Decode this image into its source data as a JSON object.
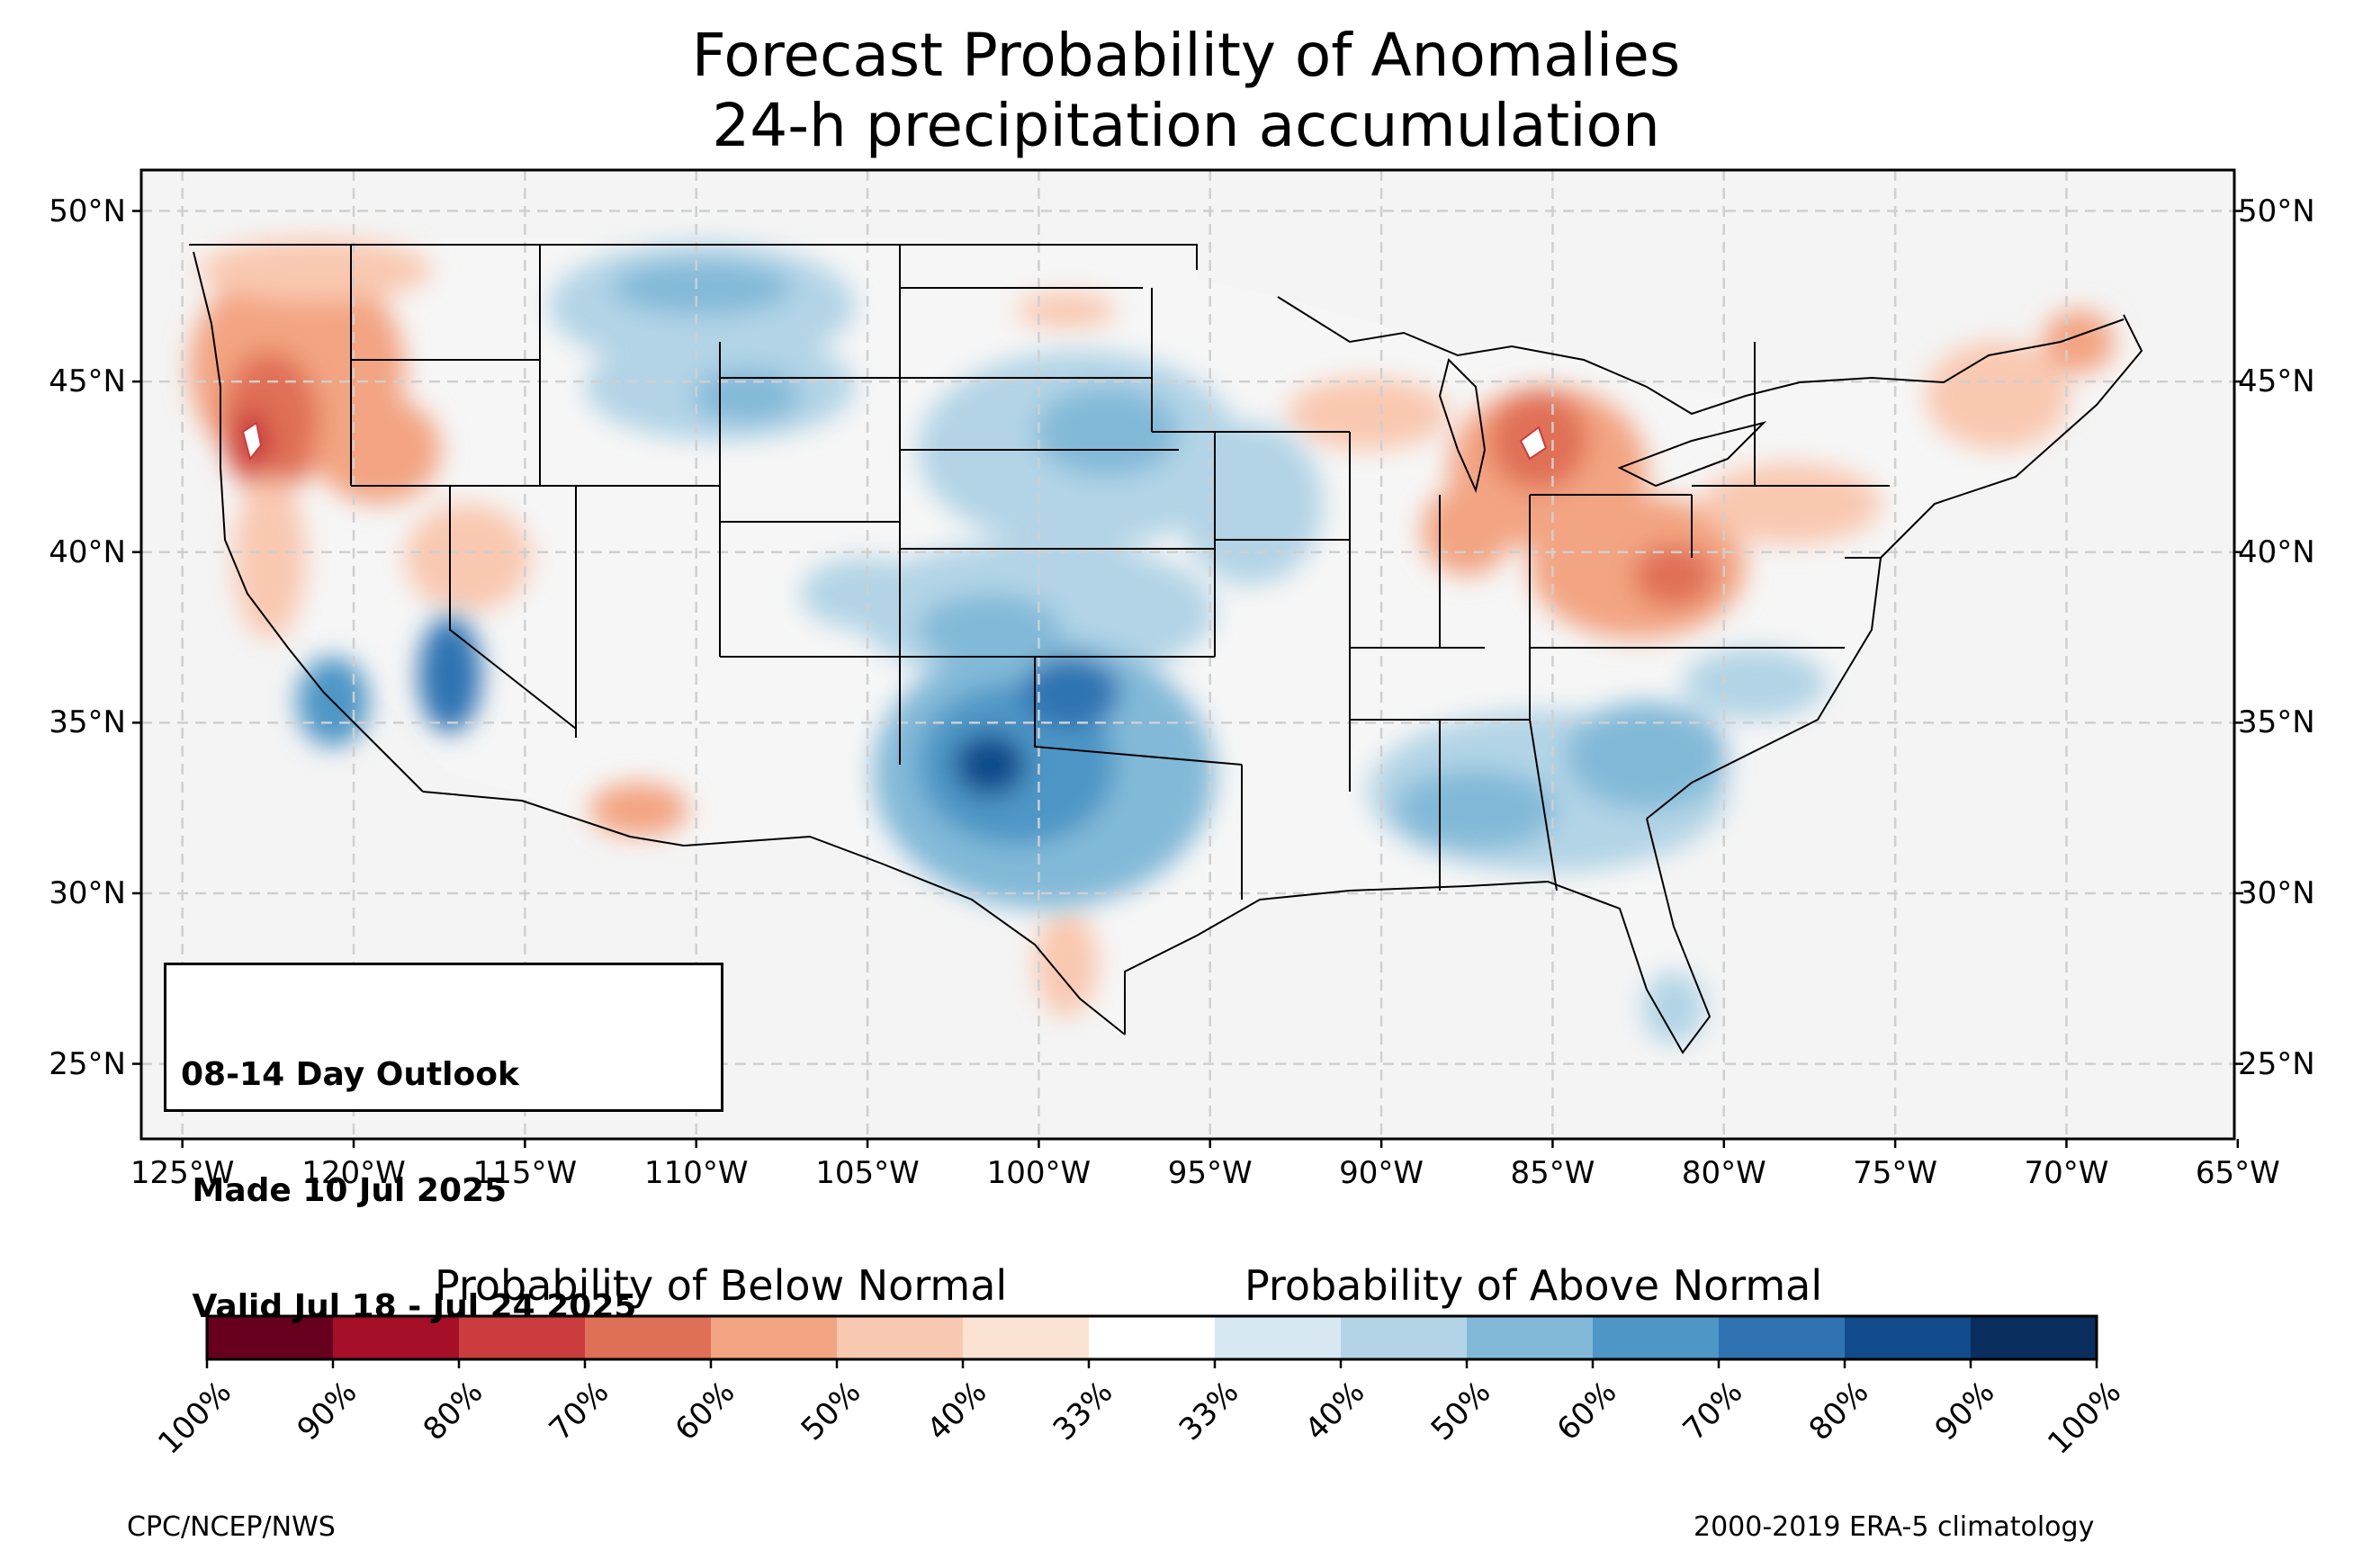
{
  "title": {
    "line1": "Forecast Probability of Anomalies",
    "line2": "24-h precipitation accumulation"
  },
  "map": {
    "lon_ticks": [
      "125°W",
      "120°W",
      "115°W",
      "110°W",
      "105°W",
      "100°W",
      "95°W",
      "90°W",
      "85°W",
      "80°W",
      "75°W",
      "70°W",
      "65°W"
    ],
    "lon_values": [
      -125,
      -120,
      -115,
      -110,
      -105,
      -100,
      -95,
      -90,
      -85,
      -80,
      -75,
      -70,
      -65
    ],
    "lat_ticks": [
      "50°N",
      "45°N",
      "40°N",
      "35°N",
      "30°N",
      "25°N"
    ],
    "lat_values": [
      50,
      45,
      40,
      35,
      30,
      25
    ],
    "extent": {
      "lon": [
        -126.2,
        -65.1
      ],
      "lat": [
        22.8,
        51.2
      ]
    },
    "land_color": "#f4f4f4",
    "gridlines": "dashed",
    "anomaly_regions": [
      {
        "name": "Pacific Northwest / Oregon",
        "category": "below",
        "probability": "50-60%",
        "peak": "70-80%"
      },
      {
        "name": "Northern Rockies / Montana",
        "category": "above",
        "probability": "50-60%"
      },
      {
        "name": "Central Plains / Nebraska-Kansas",
        "category": "above",
        "probability": "50-60%"
      },
      {
        "name": "Southern Plains / Oklahoma-Texas",
        "category": "above",
        "probability": "60-70%",
        "peak": "80-90%"
      },
      {
        "name": "Southern California / Nevada",
        "category": "above",
        "probability": "60-70%"
      },
      {
        "name": "Great Lakes / Ohio Valley",
        "category": "below",
        "probability": "50-60%",
        "peak": "70-80%"
      },
      {
        "name": "Northeast / New England",
        "category": "below",
        "probability": "40-50%"
      },
      {
        "name": "Southeast / Gulf Coast",
        "category": "above",
        "probability": "50-60%"
      },
      {
        "name": "South Texas",
        "category": "below",
        "probability": "40-50%"
      },
      {
        "name": "Southern Arizona",
        "category": "below",
        "probability": "40-50%"
      }
    ]
  },
  "outlook": {
    "line1": "08-14 Day Outlook",
    "line2": " Made 10 Jul 2025",
    "line3": " Valid Jul 18 - Jul 24 2025"
  },
  "colorbar": {
    "below_label": "Probability of Below Normal",
    "above_label": "Probability of Above Normal",
    "colors": [
      "#67001f",
      "#a50f27",
      "#ca3c3e",
      "#e06f57",
      "#f3a482",
      "#f9c8b0",
      "#fbe3d4",
      "#ffffff",
      "#d8e8f2",
      "#b2d4e6",
      "#82b9d8",
      "#4d96c6",
      "#2f73b2",
      "#114b8b",
      "#0a2e5e"
    ],
    "labels": [
      "100%",
      "90%",
      "80%",
      "70%",
      "60%",
      "50%",
      "40%",
      "33%",
      "33%",
      "40%",
      "50%",
      "60%",
      "70%",
      "80%",
      "90%",
      "100%"
    ]
  },
  "footer": {
    "left": "CPC/NCEP/NWS",
    "right": "2000-2019 ERA-5 climatology"
  }
}
